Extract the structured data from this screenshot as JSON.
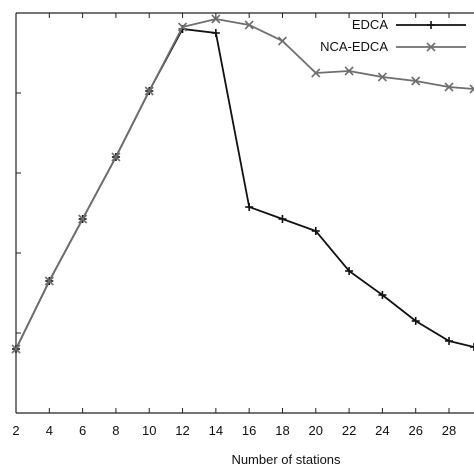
{
  "chart_data": {
    "type": "line",
    "xlabel": "Number of stations",
    "ylabel": "",
    "x_ticks": [
      2,
      4,
      6,
      8,
      10,
      12,
      14,
      16,
      18,
      20,
      22,
      24,
      26,
      28
    ],
    "xlim": [
      2,
      29.5
    ],
    "ylim": [
      0,
      100
    ],
    "y_ticks": [
      0,
      20,
      40,
      60,
      80,
      100
    ],
    "y_tick_labels_visible": false,
    "grid": false,
    "legend_position": "top-right",
    "series": [
      {
        "name": "EDCA",
        "color": "#111111",
        "marker": "plus",
        "x": [
          2,
          4,
          6,
          8,
          10,
          12,
          14,
          16,
          18,
          20,
          22,
          24,
          26,
          28,
          29.5
        ],
        "y": [
          16,
          33,
          48.5,
          64,
          80.5,
          96,
          95,
          51.5,
          48.5,
          45.5,
          35.5,
          29.5,
          23,
          18,
          16.5
        ]
      },
      {
        "name": "NCA-EDCA",
        "color": "#6e6e6e",
        "marker": "x",
        "x": [
          2,
          4,
          6,
          8,
          10,
          12,
          14,
          16,
          18,
          20,
          22,
          24,
          26,
          28,
          29.5
        ],
        "y": [
          16,
          33,
          48.5,
          64,
          80.5,
          96.5,
          98.5,
          97,
          93,
          85,
          85.5,
          84,
          83,
          81.5,
          81
        ]
      }
    ]
  }
}
